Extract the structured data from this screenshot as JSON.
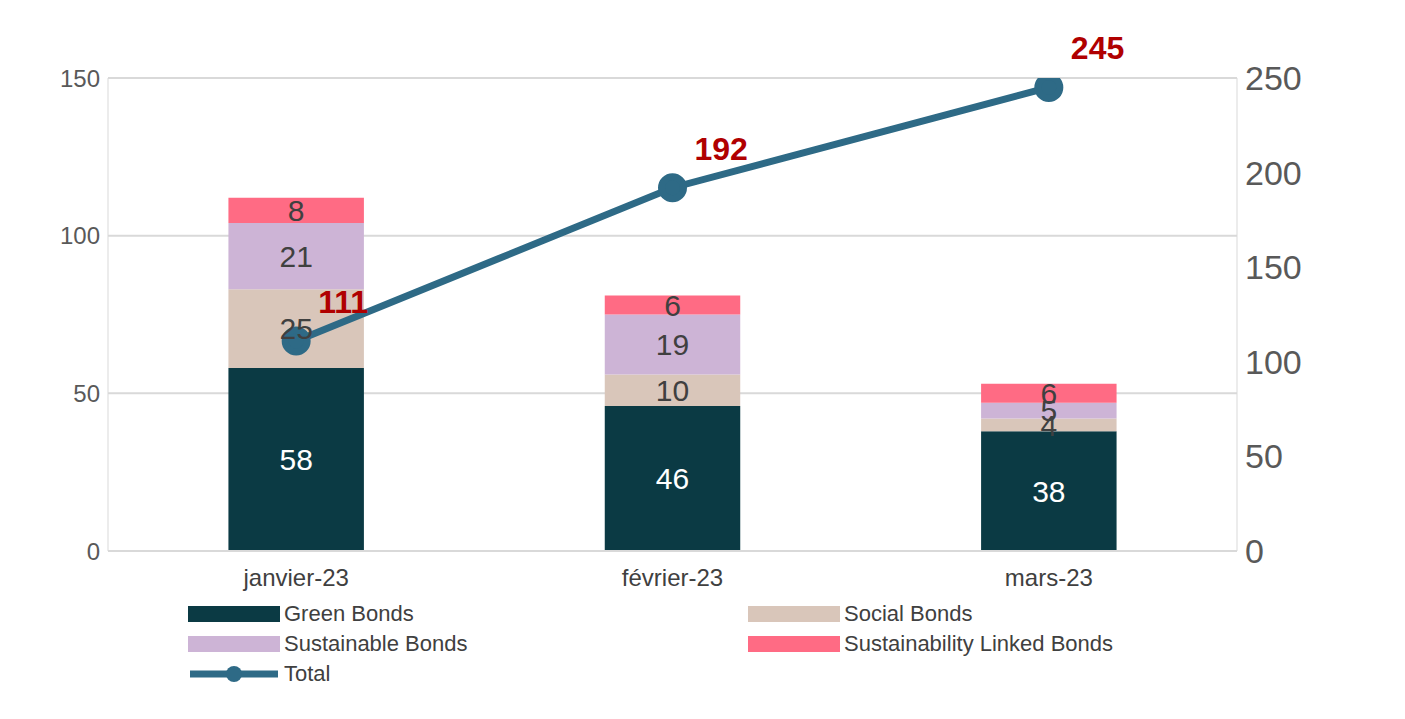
{
  "chart_data": {
    "type": "bar",
    "stacked": true,
    "data_labels": true,
    "grid": true,
    "legend": "bottom",
    "categories": [
      "janvier-23",
      "février-23",
      "mars-23"
    ],
    "ylim": [
      0,
      150
    ],
    "yticks": [
      0,
      50,
      100,
      150
    ],
    "y2lim": [
      0,
      250
    ],
    "y2ticks": [
      0,
      50,
      100,
      150,
      200,
      250
    ],
    "series": [
      {
        "name": "Green Bonds",
        "type": "bar",
        "color": "#0B3A44",
        "values": [
          58,
          46,
          38
        ]
      },
      {
        "name": "Social Bonds",
        "type": "bar",
        "color": "#D9C6BA",
        "values": [
          25,
          10,
          4
        ]
      },
      {
        "name": "Sustainable Bonds",
        "type": "bar",
        "color": "#CDB4D6",
        "values": [
          21,
          19,
          5
        ]
      },
      {
        "name": "Sustainability Linked Bonds",
        "type": "bar",
        "color": "#FF6B84",
        "values": [
          8,
          6,
          6
        ]
      },
      {
        "name": "Total",
        "type": "line",
        "axis": "y2",
        "color": "#2E6A86",
        "marker": "circle",
        "values": [
          111,
          192,
          245
        ]
      }
    ]
  }
}
